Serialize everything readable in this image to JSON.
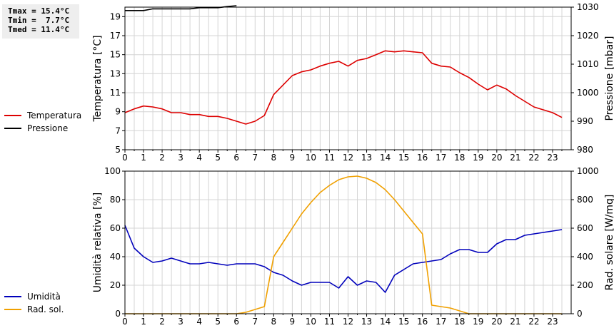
{
  "stats": {
    "tmax": "Tmax = 15.4°C",
    "tmin": "Tmin =  7.7°C",
    "tmed": "Tmed = 11.4°C"
  },
  "legend_top": [
    {
      "label": "Temperatura",
      "color": "#dd0000"
    },
    {
      "label": "Pressione",
      "color": "#000000"
    }
  ],
  "legend_bottom": [
    {
      "label": "Umidità",
      "color": "#0000bb"
    },
    {
      "label": "Rad. sol.",
      "color": "#f0a000"
    }
  ],
  "chart_data": [
    {
      "type": "line",
      "xlabel": "",
      "xlim": [
        0,
        24
      ],
      "x_ticks": [
        0,
        1,
        2,
        3,
        4,
        5,
        6,
        7,
        8,
        9,
        10,
        11,
        12,
        13,
        14,
        15,
        16,
        17,
        18,
        19,
        20,
        21,
        22,
        23
      ],
      "grid": true,
      "left_axis": {
        "label": "Temperatura [°C]",
        "ylim": [
          5,
          20
        ],
        "ticks": [
          5,
          7,
          9,
          11,
          13,
          15,
          17,
          19
        ]
      },
      "right_axis": {
        "label": "Pressione [mbar]",
        "ylim": [
          980,
          1030
        ],
        "ticks": [
          980,
          990,
          1000,
          1010,
          1020,
          1030
        ]
      },
      "series": [
        {
          "name": "Temperatura",
          "axis": "left",
          "color": "#dd0000",
          "x": [
            0,
            0.5,
            1,
            1.5,
            2,
            2.5,
            3,
            3.5,
            4,
            4.5,
            5,
            5.5,
            6,
            6.5,
            7,
            7.5,
            8,
            8.5,
            9,
            9.5,
            10,
            10.5,
            11,
            11.5,
            12,
            12.5,
            13,
            13.5,
            14,
            14.5,
            15,
            15.5,
            16,
            16.5,
            17,
            17.5,
            18,
            18.5,
            19,
            19.5,
            20,
            20.5,
            21,
            21.5,
            22,
            22.5,
            23,
            23.5
          ],
          "y": [
            8.9,
            9.3,
            9.6,
            9.5,
            9.3,
            8.9,
            8.9,
            8.7,
            8.7,
            8.5,
            8.5,
            8.3,
            8.0,
            7.7,
            8.0,
            8.6,
            10.8,
            11.8,
            12.8,
            13.2,
            13.4,
            13.8,
            14.1,
            14.3,
            13.8,
            14.4,
            14.6,
            15.0,
            15.4,
            15.3,
            15.4,
            15.3,
            15.2,
            14.1,
            13.8,
            13.7,
            13.1,
            12.6,
            11.9,
            11.3,
            11.8,
            11.4,
            10.7,
            10.1,
            9.5,
            9.2,
            8.9,
            8.4
          ]
        },
        {
          "name": "Pressione",
          "axis": "right",
          "color": "#000000",
          "x": [
            0,
            0.5,
            1,
            1.5,
            2,
            2.5,
            3,
            3.5,
            4,
            4.5,
            5,
            5.5,
            6
          ],
          "y": [
            1028.8,
            1028.8,
            1028.8,
            1029.4,
            1029.4,
            1029.4,
            1029.4,
            1029.4,
            1029.8,
            1029.8,
            1029.8,
            1030.2,
            1030.5
          ]
        }
      ]
    },
    {
      "type": "line",
      "xlabel": "",
      "xlim": [
        0,
        24
      ],
      "x_ticks": [
        0,
        1,
        2,
        3,
        4,
        5,
        6,
        7,
        8,
        9,
        10,
        11,
        12,
        13,
        14,
        15,
        16,
        17,
        18,
        19,
        20,
        21,
        22,
        23
      ],
      "grid": true,
      "left_axis": {
        "label": "Umidità relativa [%]",
        "ylim": [
          0,
          100
        ],
        "ticks": [
          0,
          20,
          40,
          60,
          80,
          100
        ]
      },
      "right_axis": {
        "label": "Rad. solare [W/mq]",
        "ylim": [
          0,
          1000
        ],
        "ticks": [
          0,
          200,
          400,
          600,
          800,
          1000
        ]
      },
      "series": [
        {
          "name": "Umidità",
          "axis": "left",
          "color": "#0000bb",
          "x": [
            0,
            0.5,
            1,
            1.5,
            2,
            2.5,
            3,
            3.5,
            4,
            4.5,
            5,
            5.5,
            6,
            6.5,
            7,
            7.5,
            8,
            8.5,
            9,
            9.5,
            10,
            10.5,
            11,
            11.5,
            12,
            12.5,
            13,
            13.5,
            14,
            14.5,
            15,
            15.5,
            16,
            16.5,
            17,
            17.5,
            18,
            18.5,
            19,
            19.5,
            20,
            20.5,
            21,
            21.5,
            22,
            22.5,
            23,
            23.5
          ],
          "y": [
            62,
            46,
            40,
            36,
            37,
            39,
            37,
            35,
            35,
            36,
            35,
            34,
            35,
            35,
            35,
            33,
            29,
            27,
            23,
            20,
            22,
            22,
            22,
            18,
            26,
            20,
            23,
            22,
            15,
            27,
            31,
            35,
            36,
            37,
            38,
            42,
            45,
            45,
            43,
            43,
            49,
            52,
            52,
            55,
            56,
            57,
            58,
            59
          ]
        },
        {
          "name": "Rad. sol.",
          "axis": "right",
          "color": "#f0a000",
          "x": [
            0,
            6,
            6.5,
            7,
            7.5,
            8,
            8.5,
            9,
            9.5,
            10,
            10.5,
            11,
            11.5,
            12,
            12.5,
            13,
            13.5,
            14,
            14.5,
            15,
            15.5,
            16,
            16.5,
            17,
            17.5,
            18,
            18.5,
            23.5
          ],
          "y": [
            0,
            0,
            10,
            30,
            50,
            400,
            500,
            600,
            700,
            780,
            850,
            900,
            940,
            960,
            965,
            950,
            920,
            870,
            800,
            720,
            640,
            560,
            60,
            50,
            40,
            20,
            0,
            0
          ]
        }
      ]
    }
  ]
}
